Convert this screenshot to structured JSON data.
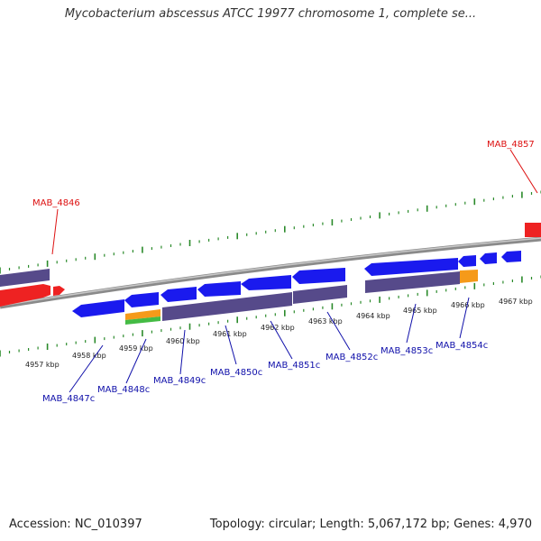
{
  "title": "Mycobacterium abscessus ATCC 19977 chromosome 1, complete se...",
  "accession": "Accession: NC_010397",
  "summary": "Topology: circular; Length: 5,067,172 bp; Genes: 4,970",
  "colors": {
    "forward_gene": "#ff2222",
    "reverse_gene": "#1d1dee",
    "cds_block": "#5a4e8c",
    "rna_orange": "#f59a1a",
    "rna_green": "#44bb44",
    "tick": "#2a8a2a",
    "backbone": "#888888",
    "forward_label": "#dd1111",
    "reverse_label": "#1010aa"
  },
  "kbp_labels": [
    "4957 kbp",
    "4958 kbp",
    "4959 kbp",
    "4960 kbp",
    "4961 kbp",
    "4962 kbp",
    "4963 kbp",
    "4964 kbp",
    "4965 kbp",
    "4966 kbp",
    "4967 kbp"
  ],
  "gene_labels": {
    "forward": [
      "MAB_4846",
      "MAB_4857"
    ],
    "reverse": [
      "MAB_4847c",
      "MAB_4848c",
      "MAB_4849c",
      "MAB_4850c",
      "MAB_4851c",
      "MAB_4852c",
      "MAB_4853c",
      "MAB_4854c"
    ]
  }
}
